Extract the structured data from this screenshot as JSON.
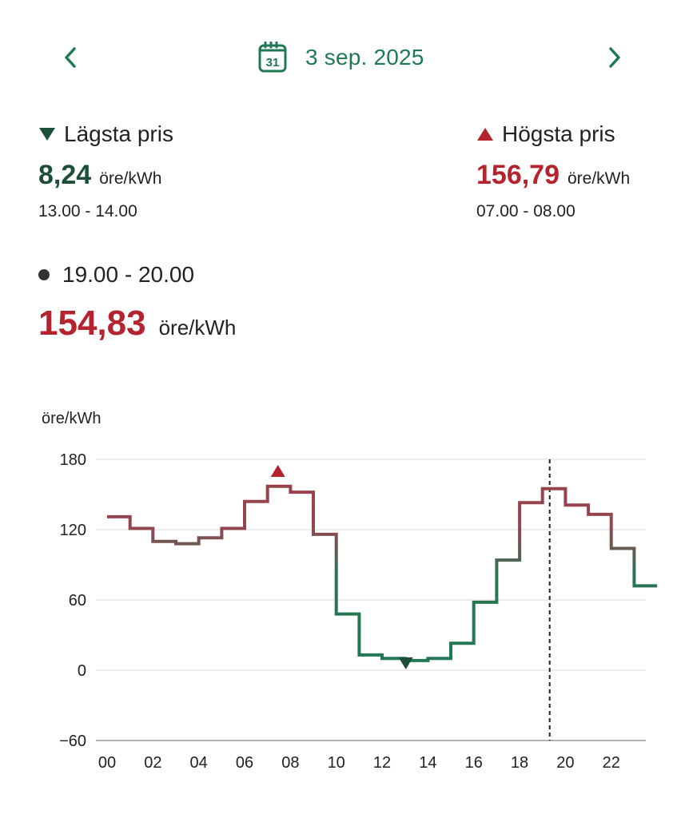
{
  "header": {
    "date": "3 sep. 2025",
    "calendar_day": "31"
  },
  "lowest": {
    "title": "Lägsta pris",
    "value": "8,24",
    "unit": "öre/kWh",
    "time_range": "13.00 - 14.00"
  },
  "highest": {
    "title": "Högsta pris",
    "value": "156,79",
    "unit": "öre/kWh",
    "time_range": "07.00 - 08.00"
  },
  "selected": {
    "time_range": "19.00 - 20.00",
    "value": "154,83",
    "unit": "öre/kWh"
  },
  "colors": {
    "accent": "#1f7a52",
    "low": "#1d4f37",
    "high": "#b5232f",
    "line_high": "#9c4048",
    "line_low": "#1f7a52"
  },
  "chart_data": {
    "type": "line",
    "step": true,
    "ylabel": "öre/kWh",
    "xlabel": "",
    "ylim": [
      -60,
      180
    ],
    "yticks": [
      -60,
      0,
      60,
      120,
      180
    ],
    "xlim": [
      0,
      23.5
    ],
    "xticks": [
      "00",
      "02",
      "04",
      "06",
      "08",
      "10",
      "12",
      "14",
      "16",
      "18",
      "20",
      "22"
    ],
    "hours": [
      0,
      1,
      2,
      3,
      4,
      5,
      6,
      7,
      8,
      9,
      10,
      11,
      12,
      13,
      14,
      15,
      16,
      17,
      18,
      19,
      20,
      21,
      22,
      23
    ],
    "values": [
      131,
      121,
      110,
      108,
      113,
      121,
      144,
      157,
      152,
      116,
      48,
      13,
      10,
      8.24,
      10,
      23,
      58,
      94,
      143,
      155,
      141,
      133,
      104,
      72
    ],
    "min_marker": {
      "hour": 13,
      "value": 8.24
    },
    "max_marker": {
      "hour": 7,
      "value": 156.79
    },
    "selected_hour": 19,
    "grid": true
  }
}
